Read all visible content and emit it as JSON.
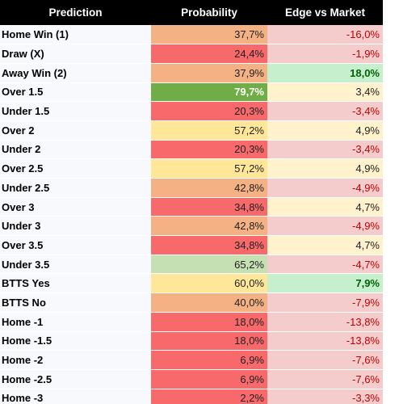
{
  "table": {
    "columns": [
      "Prediction",
      "Probability",
      "Edge vs Market"
    ],
    "rows": [
      {
        "prediction": "Home Win (1)",
        "probability": "37,7%",
        "probability_tone": "orange",
        "edge": "-16,0%",
        "edge_tone": "negative"
      },
      {
        "prediction": "Draw (X)",
        "probability": "24,4%",
        "probability_tone": "red",
        "edge": "-1,9%",
        "edge_tone": "negative"
      },
      {
        "prediction": "Away Win (2)",
        "probability": "37,9%",
        "probability_tone": "orange",
        "edge": "18,0%",
        "edge_tone": "strong"
      },
      {
        "prediction": "Over 1.5",
        "probability": "79,7%",
        "probability_tone": "green",
        "edge": "3,4%",
        "edge_tone": "positive"
      },
      {
        "prediction": "Under 1.5",
        "probability": "20,3%",
        "probability_tone": "red",
        "edge": "-3,4%",
        "edge_tone": "negative"
      },
      {
        "prediction": "Over 2",
        "probability": "57,2%",
        "probability_tone": "yellow",
        "edge": "4,9%",
        "edge_tone": "positive"
      },
      {
        "prediction": "Under 2",
        "probability": "20,3%",
        "probability_tone": "red",
        "edge": "-3,4%",
        "edge_tone": "negative"
      },
      {
        "prediction": "Over 2.5",
        "probability": "57,2%",
        "probability_tone": "yellow",
        "edge": "4,9%",
        "edge_tone": "positive"
      },
      {
        "prediction": "Under 2.5",
        "probability": "42,8%",
        "probability_tone": "orange",
        "edge": "-4,9%",
        "edge_tone": "negative"
      },
      {
        "prediction": "Over 3",
        "probability": "34,8%",
        "probability_tone": "red",
        "edge": "4,7%",
        "edge_tone": "positive"
      },
      {
        "prediction": "Under 3",
        "probability": "42,8%",
        "probability_tone": "orange",
        "edge": "-4,9%",
        "edge_tone": "negative"
      },
      {
        "prediction": "Over 3.5",
        "probability": "34,8%",
        "probability_tone": "red",
        "edge": "4,7%",
        "edge_tone": "positive"
      },
      {
        "prediction": "Under 3.5",
        "probability": "65,2%",
        "probability_tone": "lightgreen",
        "edge": "-4,7%",
        "edge_tone": "negative"
      },
      {
        "prediction": "BTTS Yes",
        "probability": "60,0%",
        "probability_tone": "yellow",
        "edge": "7,9%",
        "edge_tone": "strong"
      },
      {
        "prediction": "BTTS No",
        "probability": "40,0%",
        "probability_tone": "orange",
        "edge": "-7,9%",
        "edge_tone": "negative"
      },
      {
        "prediction": "Home -1",
        "probability": "18,0%",
        "probability_tone": "red",
        "edge": "-13,8%",
        "edge_tone": "negative"
      },
      {
        "prediction": "Home -1.5",
        "probability": "18,0%",
        "probability_tone": "red",
        "edge": "-13,8%",
        "edge_tone": "negative"
      },
      {
        "prediction": "Home -2",
        "probability": "6,9%",
        "probability_tone": "red",
        "edge": "-7,6%",
        "edge_tone": "negative"
      },
      {
        "prediction": "Home -2.5",
        "probability": "6,9%",
        "probability_tone": "red",
        "edge": "-7,6%",
        "edge_tone": "negative"
      },
      {
        "prediction": "Home -3",
        "probability": "2,2%",
        "probability_tone": "red",
        "edge": "-3,3%",
        "edge_tone": "negative"
      }
    ]
  }
}
